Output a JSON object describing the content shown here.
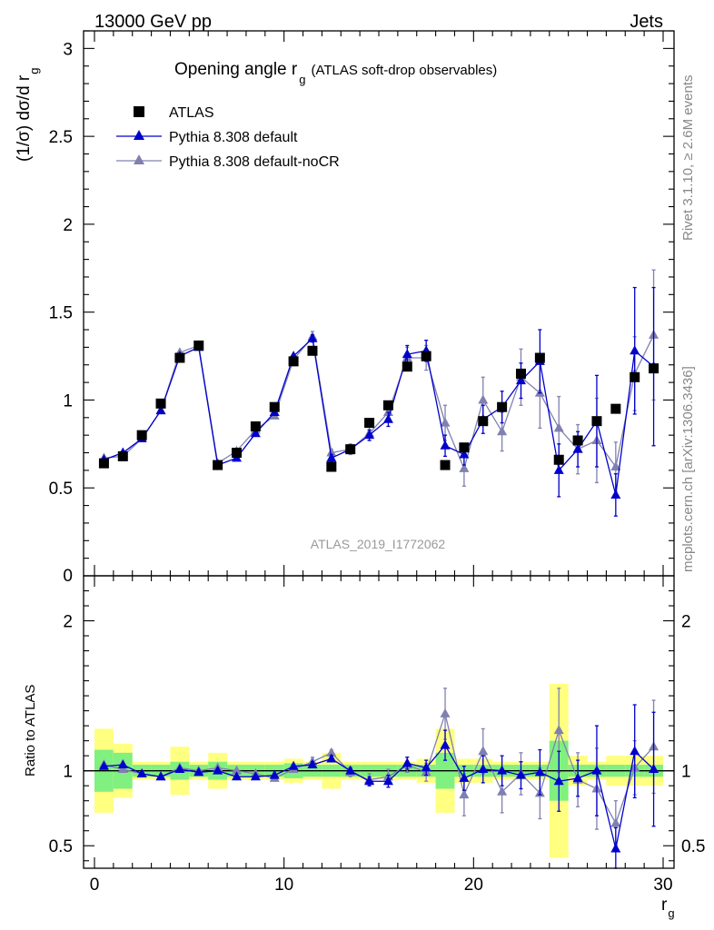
{
  "header": {
    "left": "13000 GeV pp",
    "right": "Jets",
    "side_top": "Rivet 3.1.10, ≥ 2.6M events",
    "side_bottom": "mcplots.cern.ch [arXiv:1306.3436]",
    "watermark": "ATLAS_2019_I1772062"
  },
  "chart_data": {
    "type": "scatter",
    "title": {
      "main": "Opening angle r",
      "sub": "g",
      "tail": "(ATLAS soft-drop observables)"
    },
    "xlabel": {
      "main": "r",
      "sub": "g"
    },
    "ylabel": {
      "main": "(1/σ) dσ/d r",
      "sub": "g"
    },
    "ratio_ylabel": "Ratio to ATLAS",
    "xlim": [
      -1,
      31
    ],
    "ylim": [
      0,
      3.1
    ],
    "ratio_ylim": [
      0.35,
      2.3
    ],
    "x_ticks": [
      0,
      10,
      20,
      30
    ],
    "y_ticks": [
      0.5,
      1,
      1.5,
      2,
      2.5,
      3
    ],
    "y_tick_labels": [
      "0.5",
      "1",
      "1.5",
      "2",
      "2.5",
      "3"
    ],
    "y_zero_label": "0",
    "ratio_ticks": [
      0.5,
      1,
      2
    ],
    "ratio_tick_labels": [
      "0.5",
      "1",
      "2"
    ],
    "colors": {
      "data": "#000000",
      "default": "#0000cc",
      "nocr": "#8080b0",
      "band_inner": "#80f080",
      "band_outer": "#ffff80"
    },
    "legend": [
      "ATLAS",
      "Pythia 8.308 default",
      "Pythia 8.308 default-noCR"
    ],
    "x": [
      0.5,
      1.5,
      2.5,
      3.5,
      4.5,
      5.5,
      6.5,
      7.5,
      8.5,
      9.5,
      10.5,
      11.5,
      12.5,
      13.5,
      14.5,
      15.5,
      16.5,
      17.5,
      18.5,
      19.5,
      20.5,
      21.5,
      22.5,
      23.5,
      24.5,
      25.5,
      26.5,
      27.5,
      28.5,
      29.5
    ],
    "series": [
      {
        "name": "ATLAS",
        "values": [
          0.64,
          0.68,
          0.8,
          0.98,
          1.24,
          1.31,
          0.63,
          0.7,
          0.85,
          0.96,
          1.22,
          1.28,
          0.62,
          0.72,
          0.87,
          0.97,
          1.19,
          1.25,
          0.63,
          0.73,
          0.88,
          0.96,
          1.15,
          1.24,
          0.66,
          0.77,
          0.88,
          0.95,
          1.13,
          1.18
        ]
      },
      {
        "name": "Pythia 8.308 default",
        "values": [
          0.66,
          0.7,
          0.78,
          0.94,
          1.25,
          1.3,
          0.63,
          0.67,
          0.81,
          0.93,
          1.25,
          1.35,
          0.67,
          0.72,
          0.8,
          0.89,
          1.26,
          1.28,
          0.74,
          0.69,
          0.89,
          0.96,
          1.11,
          1.22,
          0.6,
          0.72,
          0.88,
          0.46,
          1.28,
          1.19
        ],
        "err": [
          0.01,
          0.01,
          0.01,
          0.01,
          0.01,
          0.01,
          0.01,
          0.01,
          0.01,
          0.01,
          0.01,
          0.02,
          0.02,
          0.02,
          0.03,
          0.04,
          0.05,
          0.06,
          0.06,
          0.06,
          0.08,
          0.09,
          0.1,
          0.18,
          0.15,
          0.1,
          0.26,
          0.12,
          0.36,
          0.45
        ]
      },
      {
        "name": "Pythia 8.308 default-noCR",
        "values": [
          0.67,
          0.68,
          0.78,
          0.94,
          1.27,
          1.31,
          0.64,
          0.71,
          0.83,
          0.91,
          1.23,
          1.36,
          0.7,
          0.72,
          0.81,
          0.93,
          1.24,
          1.24,
          0.87,
          0.61,
          1.0,
          0.82,
          1.13,
          1.04,
          0.84,
          0.72,
          0.77,
          0.62,
          1.15,
          1.37
        ],
        "err": [
          0.01,
          0.01,
          0.01,
          0.01,
          0.01,
          0.01,
          0.01,
          0.01,
          0.01,
          0.01,
          0.02,
          0.03,
          0.02,
          0.03,
          0.04,
          0.05,
          0.06,
          0.07,
          0.1,
          0.1,
          0.13,
          0.11,
          0.16,
          0.2,
          0.18,
          0.14,
          0.24,
          0.14,
          0.21,
          0.37
        ]
      }
    ],
    "ratio_series": [
      {
        "name": "Pythia 8.308 default",
        "values": [
          1.03,
          1.04,
          0.98,
          0.96,
          1.01,
          0.99,
          1.0,
          0.96,
          0.96,
          0.97,
          1.03,
          1.04,
          1.08,
          1.0,
          0.93,
          0.93,
          1.05,
          1.02,
          1.17,
          0.95,
          1.01,
          1.0,
          0.97,
          0.99,
          0.93,
          0.95,
          1.0,
          0.48,
          1.13,
          1.01
        ],
        "err": [
          0.01,
          0.01,
          0.01,
          0.01,
          0.01,
          0.01,
          0.01,
          0.01,
          0.01,
          0.01,
          0.01,
          0.02,
          0.02,
          0.02,
          0.03,
          0.04,
          0.04,
          0.05,
          0.1,
          0.08,
          0.09,
          0.1,
          0.09,
          0.15,
          0.2,
          0.12,
          0.3,
          0.14,
          0.31,
          0.38
        ]
      },
      {
        "name": "Pythia 8.308 default-noCR",
        "values": [
          1.04,
          1.01,
          0.98,
          0.96,
          1.02,
          1.0,
          1.02,
          1.0,
          0.98,
          0.95,
          1.01,
          1.06,
          1.12,
          0.99,
          0.94,
          0.96,
          1.04,
          0.99,
          1.38,
          0.84,
          1.13,
          0.86,
          0.98,
          0.85,
          1.27,
          0.94,
          0.88,
          0.65,
          1.02,
          1.16
        ],
        "err": [
          0.01,
          0.01,
          0.01,
          0.01,
          0.01,
          0.01,
          0.01,
          0.01,
          0.01,
          0.01,
          0.02,
          0.03,
          0.02,
          0.03,
          0.04,
          0.05,
          0.05,
          0.06,
          0.17,
          0.14,
          0.15,
          0.14,
          0.14,
          0.17,
          0.28,
          0.18,
          0.27,
          0.15,
          0.18,
          0.31
        ]
      }
    ],
    "band_inner": [
      0.14,
      0.12,
      0.04,
      0.04,
      0.06,
      0.04,
      0.06,
      0.04,
      0.04,
      0.04,
      0.05,
      0.04,
      0.04,
      0.04,
      0.04,
      0.04,
      0.04,
      0.04,
      0.12,
      0.04,
      0.04,
      0.04,
      0.04,
      0.04,
      0.2,
      0.04,
      0.04,
      0.04,
      0.04,
      0.04
    ],
    "band_outer": [
      0.28,
      0.18,
      0.06,
      0.06,
      0.16,
      0.06,
      0.12,
      0.06,
      0.06,
      0.06,
      0.08,
      0.06,
      0.12,
      0.06,
      0.06,
      0.06,
      0.06,
      0.08,
      0.28,
      0.08,
      0.08,
      0.06,
      0.06,
      0.06,
      0.58,
      0.1,
      0.06,
      0.1,
      0.1,
      0.1
    ]
  }
}
